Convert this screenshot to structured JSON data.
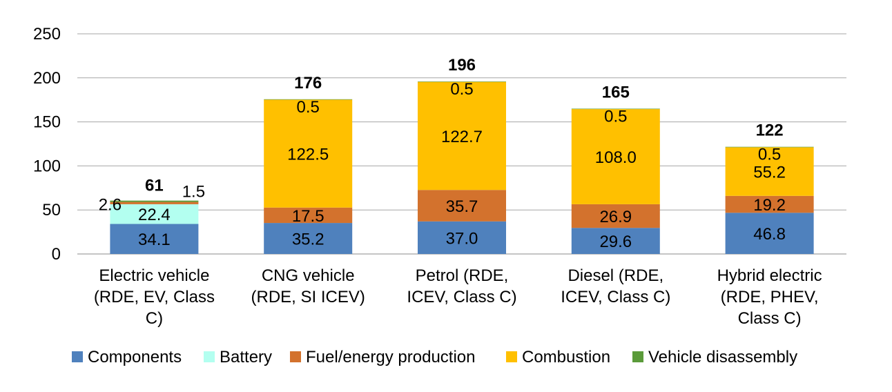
{
  "chart_data": {
    "type": "bar",
    "stacked": true,
    "title": "",
    "xlabel": "",
    "ylabel": "",
    "ylim": [
      0,
      250
    ],
    "yticks": [
      0,
      50,
      100,
      150,
      200,
      250
    ],
    "grid": true,
    "legend_position": "bottom",
    "categories": [
      [
        "Electric vehicle",
        "(RDE, EV, Class",
        "C)"
      ],
      [
        "CNG vehicle",
        "(RDE, SI ICEV)"
      ],
      [
        "Petrol (RDE,",
        "ICEV, Class C)"
      ],
      [
        "Diesel (RDE,",
        "ICEV, Class C)"
      ],
      [
        "Hybrid electric",
        "(RDE, PHEV,",
        "Class C)"
      ]
    ],
    "series": [
      {
        "name": "Components",
        "color": "#4f81bd",
        "values": [
          34.1,
          35.2,
          37.0,
          29.6,
          46.8
        ],
        "labels": [
          "34.1",
          "35.2",
          "37.0",
          "29.6",
          "46.8"
        ]
      },
      {
        "name": "Battery",
        "color": "#b3fff0",
        "values": [
          22.4,
          0,
          0,
          0,
          0
        ],
        "labels": [
          "22.4",
          "",
          "",
          "",
          ""
        ]
      },
      {
        "name": "Fuel/energy production",
        "color": "#d3722d",
        "values": [
          2.6,
          17.5,
          35.7,
          26.9,
          19.2
        ],
        "labels": [
          "2.6",
          "17.5",
          "35.7",
          "26.9",
          "19.2"
        ]
      },
      {
        "name": "Combustion",
        "color": "#ffc000",
        "values": [
          0,
          122.5,
          122.7,
          108.0,
          55.2
        ],
        "labels": [
          "",
          "122.5",
          "122.7",
          "108.0",
          "55.2"
        ]
      },
      {
        "name": "Vehicle disassembly",
        "color": "#5b9b3a",
        "values": [
          1.5,
          0.5,
          0.5,
          0.5,
          0.5
        ],
        "labels": [
          "1.5",
          "0.5",
          "0.5",
          "0.5",
          "0.5"
        ]
      }
    ],
    "totals": [
      "61",
      "176",
      "196",
      "165",
      "122"
    ]
  }
}
